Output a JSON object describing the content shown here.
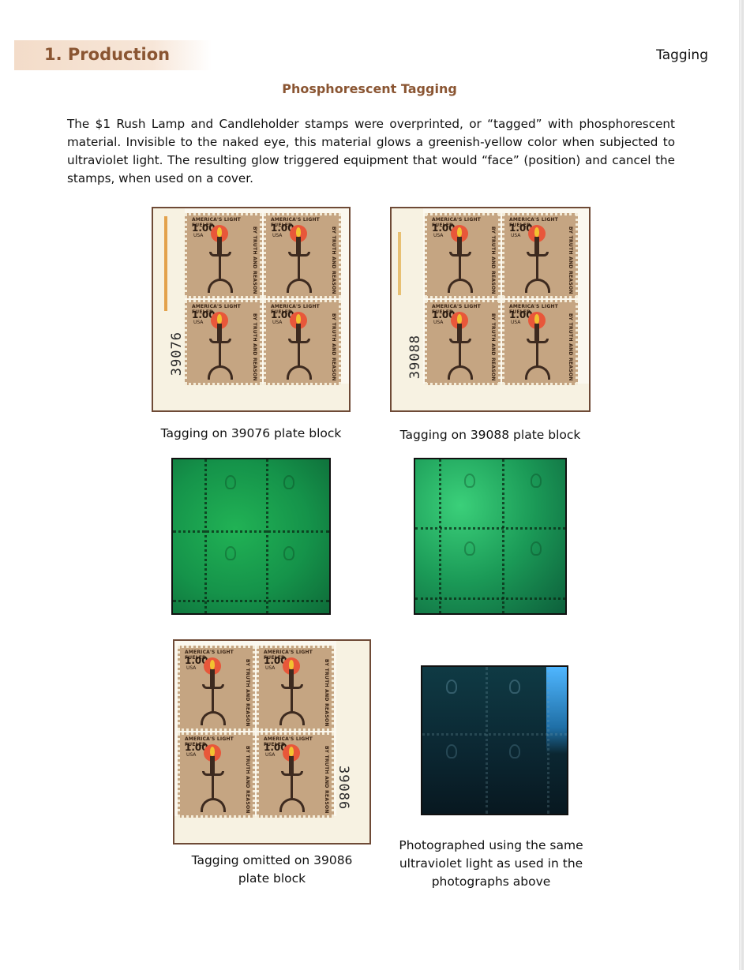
{
  "header": {
    "section_title": "1. Production",
    "topic": "Tagging"
  },
  "heading": "Phosphorescent Tagging",
  "intro": "The $1 Rush Lamp and Candleholder stamps were overprinted, or “tagged” with phosphorescent material. Invisible to the naked eye, this material glows a greenish-yellow color when subjected to ultraviolet light. The resulting glow triggered equipment that would “face” (position) and cancel the stamps, when used on a cover.",
  "stamp": {
    "top_text": "AMERICA'S LIGHT FUELED",
    "value": "1.00",
    "country": "USA",
    "side_text": "BY TRUTH AND REASON"
  },
  "blocks": [
    {
      "plate_number": "39076",
      "caption": "Tagging on 39076 plate block"
    },
    {
      "plate_number": "39088",
      "caption": "Tagging on 39088 plate block"
    },
    {
      "plate_number": "39086",
      "caption_line1": "Tagging omitted on 39086",
      "caption_line2": "plate block"
    }
  ],
  "uv_caption": {
    "line1": "Photographed using the same",
    "line2": "ultraviolet light as used in the",
    "line3": "photographs above"
  },
  "colors": {
    "accent": "#8a5532",
    "band": "#f3dcc9",
    "frame": "#6e4a36",
    "stamp": "#c5a582",
    "uv_green": "#21b255",
    "uv_dark": "#0b2631"
  }
}
